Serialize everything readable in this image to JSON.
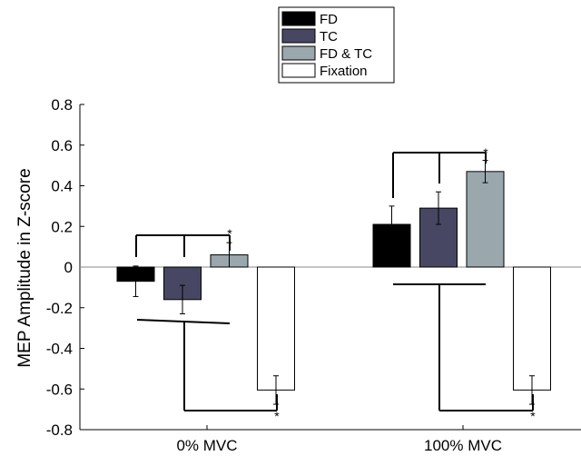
{
  "chart_data": {
    "type": "bar",
    "categories": [
      "0% MVC",
      "100% MVC"
    ],
    "series": [
      {
        "name": "FD",
        "color": "#000000",
        "values": [
          -0.07,
          0.21
        ],
        "errors": [
          0.075,
          0.09
        ]
      },
      {
        "name": "TC",
        "color": "#474763",
        "values": [
          -0.16,
          0.29
        ],
        "errors": [
          0.07,
          0.08
        ]
      },
      {
        "name": "FD & TC",
        "color": "#9aa8ae",
        "values": [
          0.06,
          0.47
        ],
        "errors": [
          0.06,
          0.055
        ]
      },
      {
        "name": "Fixation",
        "color": "#ffffff",
        "values": [
          -0.605,
          -0.605
        ],
        "errors": [
          0.07,
          0.07
        ]
      }
    ],
    "ylabel": "MEP Amplitude in Z-score",
    "xlabel": "",
    "ylim": [
      -0.8,
      0.8
    ],
    "yticks": [
      0.8,
      0.6,
      0.4,
      0.2,
      0,
      -0.2,
      -0.4,
      -0.6,
      -0.8
    ],
    "ytick_labels": [
      "0.8",
      "0.6",
      "0.4",
      "0.2",
      "0",
      "-0.2",
      "-0.4",
      "-0.6",
      "-0.8"
    ],
    "legend_position": "top",
    "significance_marker": "*",
    "grid": false
  }
}
